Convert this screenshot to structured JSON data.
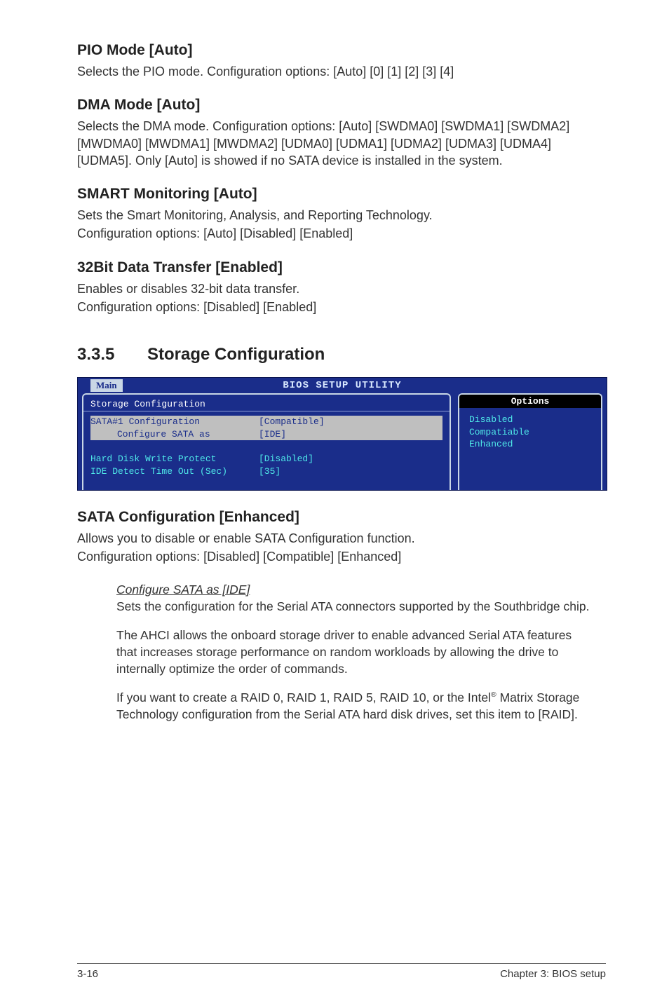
{
  "sections": {
    "pio": {
      "title": "PIO Mode [Auto]",
      "body": "Selects the PIO mode. Configuration options: [Auto] [0] [1] [2] [3] [4]"
    },
    "dma": {
      "title": "DMA Mode [Auto]",
      "body": "Selects the DMA mode. Configuration options: [Auto] [SWDMA0] [SWDMA1] [SWDMA2] [MWDMA0] [MWDMA1] [MWDMA2] [UDMA0] [UDMA1] [UDMA2] [UDMA3] [UDMA4] [UDMA5]. Only [Auto] is showed if no SATA device is installed in the system."
    },
    "smart": {
      "title": "SMART Monitoring [Auto]",
      "body1": "Sets the Smart Monitoring, Analysis, and Reporting Technology.",
      "body2": "Configuration options: [Auto] [Disabled] [Enabled]"
    },
    "bit32": {
      "title": "32Bit Data Transfer [Enabled]",
      "body1": "Enables or disables 32-bit data transfer.",
      "body2": "Configuration options: [Disabled] [Enabled]"
    }
  },
  "storage_head": {
    "number": "3.3.5",
    "title": "Storage Configuration"
  },
  "bios": {
    "title": "BIOS SETUP UTILITY",
    "tab": "Main",
    "left_heading": "Storage Configuration",
    "rows": [
      {
        "label": "SATA#1 Configuration",
        "value": "[Compatible]",
        "highlight": true,
        "indent": false
      },
      {
        "label": "Configure SATA as",
        "value": "[IDE]",
        "highlight": true,
        "indent": true
      },
      {
        "label": "",
        "value": "",
        "highlight": false,
        "indent": false
      },
      {
        "label": "Hard Disk Write Protect",
        "value": "[Disabled]",
        "highlight": false,
        "indent": false
      },
      {
        "label": "IDE Detect Time Out (Sec)",
        "value": "[35]",
        "highlight": false,
        "indent": false
      }
    ],
    "right_heading": "Options",
    "right_options": [
      "Disabled",
      "Compatiable",
      "Enhanced"
    ],
    "colors": {
      "bg": "#1a2d8a",
      "frame": "#c9d7e6",
      "cyan": "#4fe8e8",
      "highlight_bg": "#bfbfbf",
      "options_head_bg": "#000000"
    }
  },
  "sata_cfg": {
    "title": "SATA Configuration [Enhanced]",
    "body1": "Allows you to disable or enable SATA Configuration function.",
    "body2": "Configuration options: [Disabled] [Compatible] [Enhanced]",
    "sub": {
      "head": "Configure SATA as [IDE]",
      "p1": "Sets the configuration for the Serial ATA connectors supported by the Southbridge chip.",
      "p2": "The AHCI allows the onboard storage driver to enable advanced Serial ATA features that increases storage performance on random workloads by allowing the drive to internally optimize the order of commands.",
      "p3a": "If you want to create a RAID 0, RAID 1,  RAID 5,  RAID 10, or the Intel",
      "p3b": " Matrix Storage Technology configuration from the Serial ATA hard disk drives, set this item to [RAID]."
    }
  },
  "footer": {
    "left": "3-16",
    "right": "Chapter 3: BIOS setup"
  }
}
